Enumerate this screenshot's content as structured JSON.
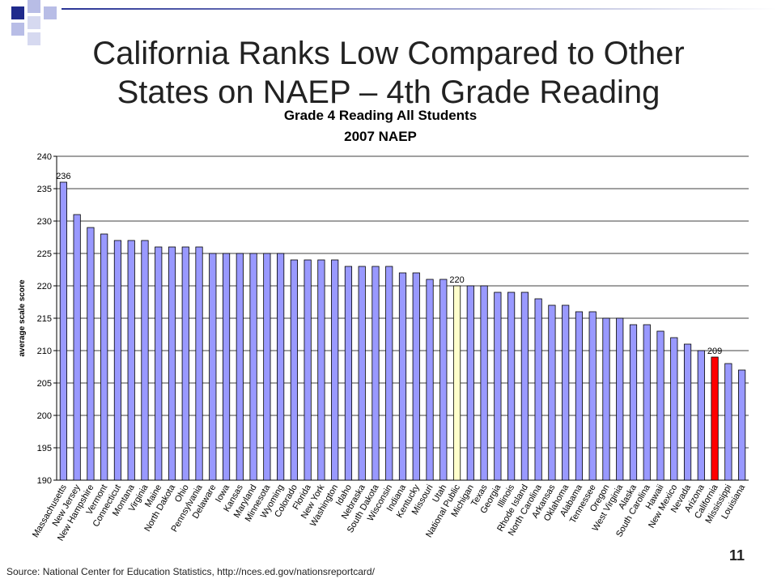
{
  "slide": {
    "title_line1": "California Ranks Low Compared to Other",
    "title_line2": "States on NAEP – 4th Grade Reading",
    "source": "Source: National Center for Education Statistics, http://nces.ed.gov/nationsreportcard/",
    "slide_number": "11"
  },
  "colors": {
    "bar": "#9999ff",
    "national": "#ffffcc",
    "california": "#ff0000",
    "deco_dark": "#1f2a8c",
    "deco_light": "#b8bde6"
  },
  "chart_data": {
    "type": "bar",
    "title": "Grade 4 Reading All Students",
    "subtitle": "2007 NAEP",
    "xlabel": "",
    "ylabel": "average scale score",
    "ylim": [
      190,
      240
    ],
    "yticks": [
      190,
      195,
      200,
      205,
      210,
      215,
      220,
      225,
      230,
      235,
      240
    ],
    "grid": true,
    "categories": [
      "Massachusetts",
      "New Jersey",
      "New Hampshire",
      "Vermont",
      "Connecticut",
      "Montana",
      "Virginia",
      "Maine",
      "North Dakota",
      "Ohio",
      "Pennsylvania",
      "Delaware",
      "Iowa",
      "Kansas",
      "Maryland",
      "Minnesota",
      "Wyoming",
      "Colorado",
      "Florida",
      "New York",
      "Washington",
      "Idaho",
      "Nebraska",
      "South Dakota",
      "Wisconsin",
      "Indiana",
      "Kentucky",
      "Missouri",
      "Utah",
      "National Public",
      "Michigan",
      "Texas",
      "Georgia",
      "Illinois",
      "Rhode Island",
      "North Carolina",
      "Arkansas",
      "Oklahoma",
      "Alabama",
      "Tennessee",
      "Oregon",
      "West Virginia",
      "Alaska",
      "South Carolina",
      "Hawaii",
      "New Mexico",
      "Nevada",
      "Arizona",
      "California",
      "Mississippi",
      "Louisiana"
    ],
    "values": [
      236,
      231,
      229,
      228,
      227,
      227,
      227,
      226,
      226,
      226,
      226,
      225,
      225,
      225,
      225,
      225,
      225,
      224,
      224,
      224,
      224,
      223,
      223,
      223,
      223,
      222,
      222,
      221,
      221,
      220,
      220,
      220,
      219,
      219,
      219,
      218,
      217,
      217,
      216,
      216,
      215,
      215,
      214,
      214,
      213,
      212,
      211,
      210,
      209,
      208,
      207
    ],
    "data_labels": [
      {
        "category": "Massachusetts",
        "text": "236"
      },
      {
        "category": "National Public",
        "text": "220"
      },
      {
        "category": "California",
        "text": "209"
      }
    ],
    "highlight": {
      "National Public": "national",
      "California": "california"
    }
  }
}
